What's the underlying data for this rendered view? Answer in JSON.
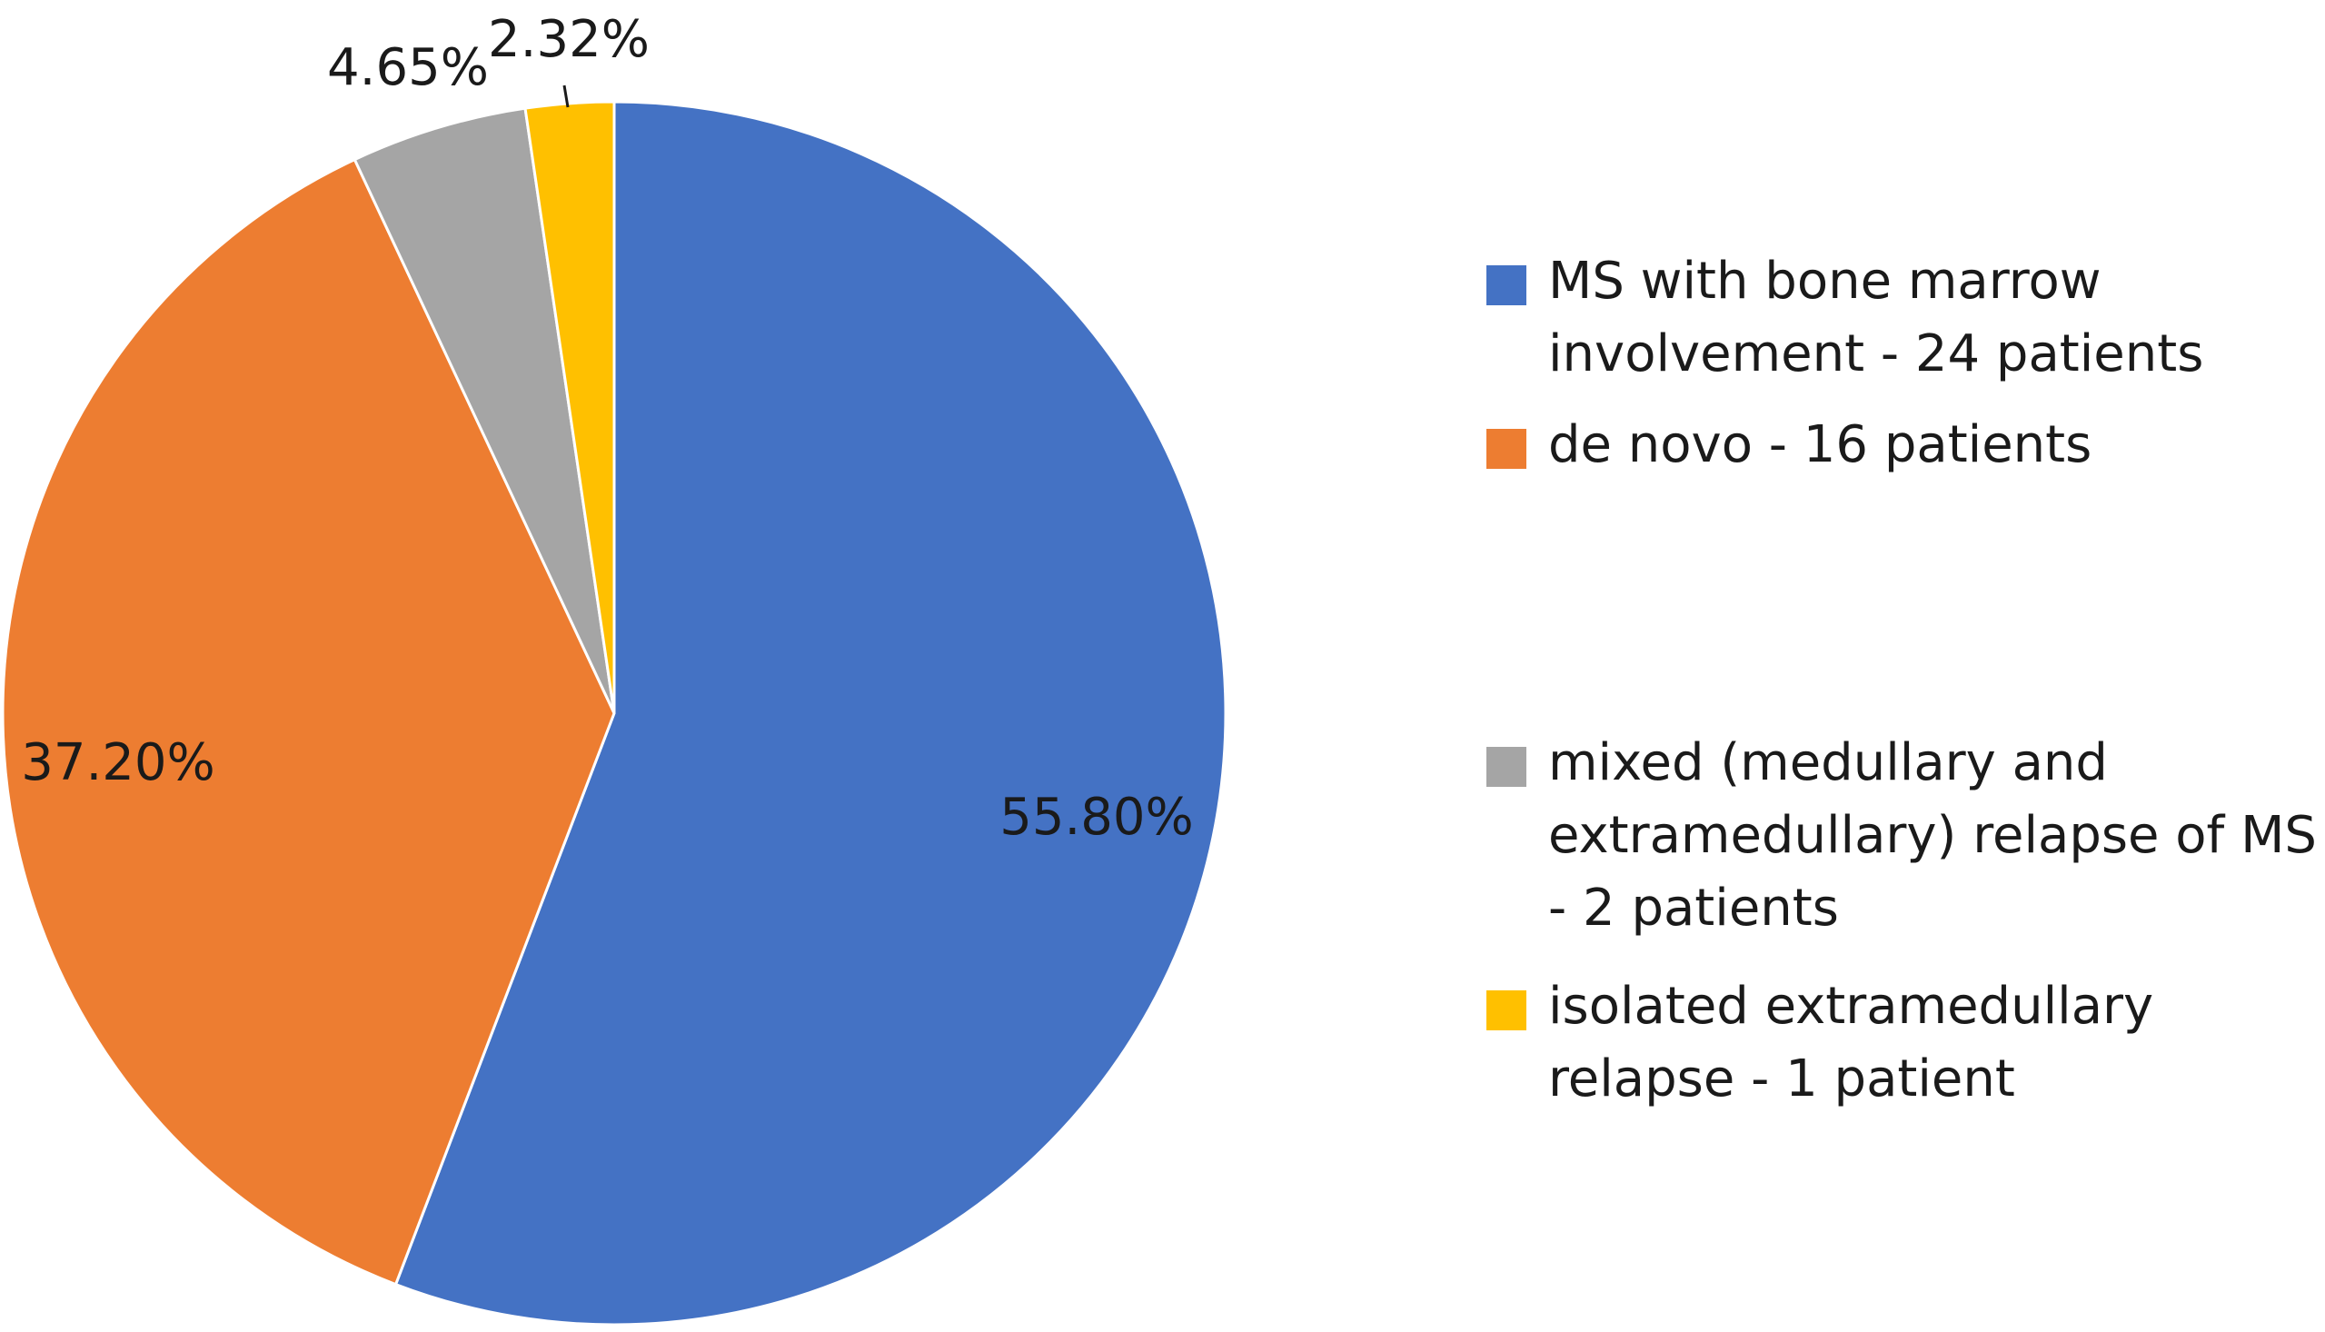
{
  "chart_data": {
    "type": "pie",
    "title": "",
    "slices": [
      {
        "label": "MS with bone marrow involvement - 24 patients",
        "value": 24,
        "percent_label": "55.80%",
        "color": "#4472C4"
      },
      {
        "label": "de novo - 16 patients",
        "value": 16,
        "percent_label": "37.20%",
        "color": "#ED7D31"
      },
      {
        "label": "mixed (medullary and extramedullary) relapse of MS - 2 patients",
        "value": 2,
        "percent_label": "4.65%",
        "color": "#A5A5A5"
      },
      {
        "label": "isolated extramedullary relapse - 1 patient",
        "value": 1,
        "percent_label": "2.32%",
        "color": "#FFC000"
      }
    ],
    "start_angle": "12 o'clock",
    "direction": "clockwise",
    "legend_position": "right"
  }
}
